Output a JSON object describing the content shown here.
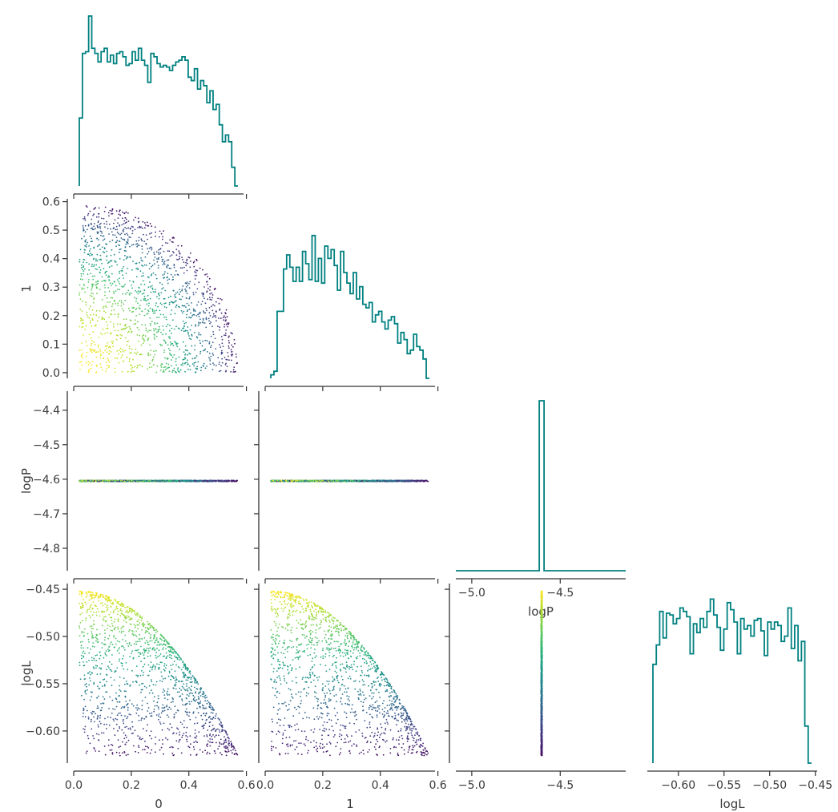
{
  "chart_data": {
    "type": "scatter",
    "description_type": "corner-plot",
    "parameters": [
      "0",
      "1",
      "logP",
      "logL"
    ],
    "colormap": "viridis",
    "hist_color": "#008080",
    "axis_labels": {
      "x": [
        "0",
        "1",
        "logP",
        "logL"
      ],
      "y": [
        "",
        "1",
        "logP",
        "logL"
      ]
    },
    "ranges": {
      "0": [
        -0.0,
        0.59
      ],
      "1": [
        -0.0,
        0.59
      ],
      "logP": [
        -5.09,
        -4.13
      ],
      "logL": [
        -0.634,
        -0.448
      ]
    },
    "y_ranges": {
      "1": [
        -0.02,
        0.61
      ],
      "logP": [
        -4.865,
        -4.345
      ],
      "logL": [
        -0.634,
        -0.444
      ]
    },
    "ticks": {
      "0": {
        "values": [
          0.0,
          0.2,
          0.4,
          0.6
        ],
        "labels": [
          "0.0",
          "0.2",
          "0.4",
          "0.6"
        ]
      },
      "1": {
        "values": [
          0.0,
          0.2,
          0.4,
          0.6
        ],
        "labels": [
          "0.0",
          "0.2",
          "0.4",
          "0.6"
        ]
      },
      "logP_x": {
        "values": [
          -5.0,
          -4.5
        ],
        "labels": [
          "−5.0",
          "−4.5"
        ]
      },
      "logL_x": {
        "values": [
          -0.6,
          -0.55,
          -0.5,
          -0.45
        ],
        "labels": [
          "−0.60",
          "−0.55",
          "−0.50",
          "−0.45"
        ]
      },
      "1_y": {
        "values": [
          0.0,
          0.1,
          0.2,
          0.3,
          0.4,
          0.5,
          0.6
        ],
        "labels": [
          "0.0",
          "0.1",
          "0.2",
          "0.3",
          "0.4",
          "0.5",
          "0.6"
        ]
      },
      "logP_y": {
        "values": [
          -4.8,
          -4.7,
          -4.6,
          -4.5,
          -4.4
        ],
        "labels": [
          "−4.8",
          "−4.7",
          "−4.6",
          "−4.5",
          "−4.4"
        ]
      },
      "logL_y": {
        "values": [
          -0.6,
          -0.55,
          -0.5,
          -0.45
        ],
        "labels": [
          "−0.60",
          "−0.55",
          "−0.50",
          "−0.45"
        ]
      }
    },
    "logP_value": -4.605,
    "histograms": {
      "0": [
        0.4,
        0.78,
        0.79,
        1.0,
        0.81,
        0.78,
        0.73,
        0.79,
        0.81,
        0.73,
        0.77,
        0.72,
        0.78,
        0.79,
        0.76,
        0.71,
        0.72,
        0.79,
        0.74,
        0.81,
        0.74,
        0.71,
        0.61,
        0.78,
        0.76,
        0.72,
        0.7,
        0.71,
        0.7,
        0.68,
        0.71,
        0.73,
        0.74,
        0.76,
        0.74,
        0.64,
        0.62,
        0.69,
        0.57,
        0.62,
        0.59,
        0.49,
        0.56,
        0.45,
        0.48,
        0.36,
        0.26,
        0.3,
        0.26,
        0.11,
        0.0
      ],
      "1": [
        0.02,
        0.04,
        0.38,
        0.38,
        0.62,
        0.7,
        0.63,
        0.55,
        0.63,
        0.55,
        0.72,
        0.65,
        0.56,
        0.81,
        0.55,
        0.68,
        0.54,
        0.75,
        0.68,
        0.73,
        0.64,
        0.5,
        0.72,
        0.6,
        0.54,
        0.48,
        0.6,
        0.45,
        0.52,
        0.42,
        0.4,
        0.43,
        0.32,
        0.36,
        0.38,
        0.32,
        0.28,
        0.33,
        0.35,
        0.31,
        0.2,
        0.26,
        0.22,
        0.14,
        0.16,
        0.25,
        0.18,
        0.16,
        0.11,
        0.0
      ],
      "logL": [
        0.56,
        0.67,
        0.86,
        0.71,
        0.85,
        0.84,
        0.79,
        0.82,
        0.88,
        0.86,
        0.83,
        0.62,
        0.79,
        0.74,
        0.82,
        0.77,
        0.86,
        0.93,
        0.84,
        0.77,
        0.64,
        0.76,
        0.91,
        0.87,
        0.8,
        0.62,
        0.82,
        0.76,
        0.78,
        0.72,
        0.81,
        0.82,
        0.75,
        0.61,
        0.8,
        0.76,
        0.8,
        0.78,
        0.69,
        0.72,
        0.88,
        0.65,
        0.78,
        0.58,
        0.69,
        0.21,
        0.0
      ],
      "logP": {
        "bin_center": -4.605,
        "value": 1.0
      }
    },
    "scatter_points": 1500
  }
}
